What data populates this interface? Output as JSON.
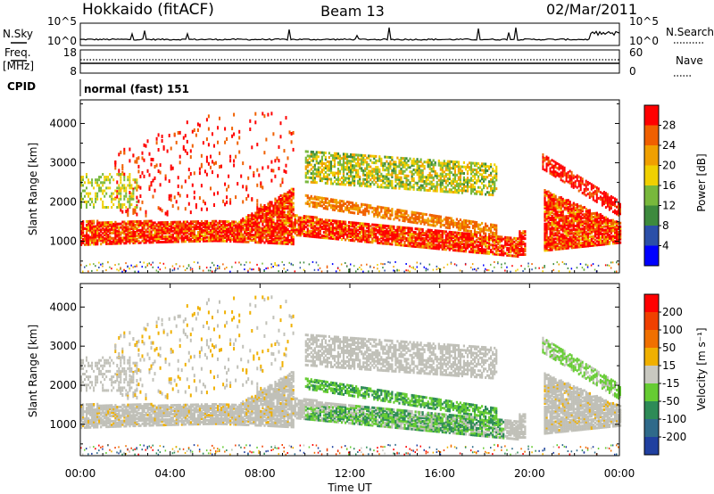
{
  "header": {
    "station": "Hokkaido (fitACF)",
    "beam": "Beam 13",
    "date": "02/Mar/2011"
  },
  "top_panels": {
    "nsky_label": "N.Sky",
    "nsearch_label": "N.Search",
    "nsky_ticks": [
      "10^5",
      "10^0"
    ],
    "freq_label_1": "Freq.",
    "freq_label_2": "[MHz]",
    "freq_ticks": [
      "18",
      "8"
    ],
    "nave_label": "Nave",
    "nave_ticks": [
      "60",
      "0"
    ],
    "cpid_label": "CPID",
    "cpid_value": "normal (fast) 151"
  },
  "colors": {
    "power_scale": [
      "#0000ff",
      "#2b4fa8",
      "#3d8a3d",
      "#78b83c",
      "#f0d000",
      "#f0a000",
      "#f06000",
      "#ff0000"
    ],
    "velocity_scale": [
      "#2040a0",
      "#2f6a8a",
      "#2e8b57",
      "#66cc33",
      "#c8c8c0",
      "#f0b000",
      "#f07000",
      "#f04000",
      "#ff0000"
    ],
    "ground_scatter": "#c0c0b8"
  },
  "chart_data": [
    {
      "type": "heatmap",
      "panel": "power",
      "ylabel": "Slant Range [km]",
      "yticks": [
        "1000",
        "2000",
        "3000",
        "4000"
      ],
      "ylim": [
        200,
        4600
      ],
      "xlim_hours": [
        0,
        24
      ],
      "colorbar": {
        "label": "Power [dB]",
        "ticks": [
          "4",
          "8",
          "12",
          "16",
          "20",
          "24",
          "28"
        ],
        "range": [
          0,
          32
        ]
      },
      "echo_bands_km": [
        {
          "hours": [
            0,
            9.5
          ],
          "range": [
            900,
            1600
          ],
          "level": "high"
        },
        {
          "hours": [
            9.5,
            19.5
          ],
          "range": [
            1100,
            1700
          ],
          "level": "high"
        },
        {
          "hours": [
            2,
            9.5
          ],
          "range": [
            1600,
            4200
          ],
          "level": "medium"
        },
        {
          "hours": [
            10,
            18.5
          ],
          "range": [
            2400,
            3500
          ],
          "level": "medium"
        },
        {
          "hours": [
            20.5,
            24
          ],
          "range": [
            800,
            3000
          ],
          "level": "high"
        }
      ]
    },
    {
      "type": "heatmap",
      "panel": "velocity",
      "ylabel": "Slant Range [km]",
      "yticks": [
        "1000",
        "2000",
        "3000",
        "4000"
      ],
      "ylim": [
        200,
        4600
      ],
      "xlim_hours": [
        0,
        24
      ],
      "xticks": [
        "00:00",
        "04:00",
        "08:00",
        "12:00",
        "16:00",
        "20:00",
        "00:00"
      ],
      "xlabel": "Time UT",
      "colorbar": {
        "label": "Velocity [m s⁻¹]",
        "ticks": [
          "200",
          "100",
          "50",
          "15",
          "-15",
          "-50",
          "-100",
          "-200"
        ]
      }
    }
  ]
}
